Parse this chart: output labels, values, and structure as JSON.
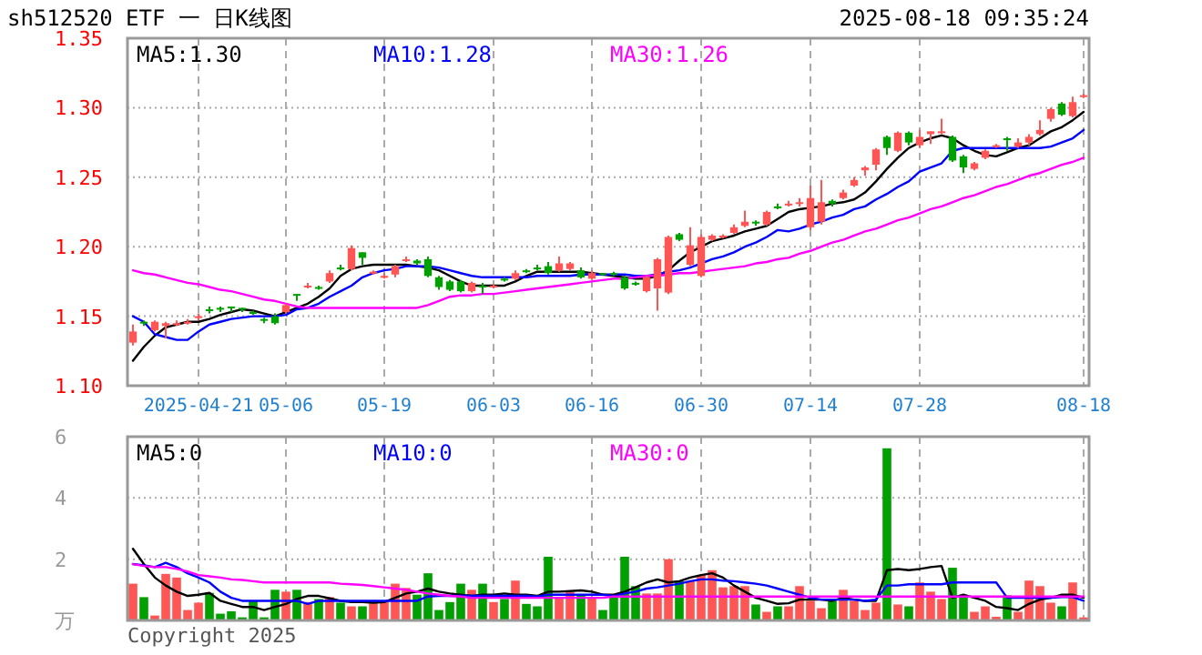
{
  "chart_data": [
    {
      "type": "candlestick",
      "title": "sh512520 ETF 一 日K线图",
      "subtitle": "2025-08-18 09:35:24",
      "categories": [
        null,
        null,
        null,
        null,
        null,
        null,
        "2025-04-21",
        null,
        null,
        null,
        null,
        null,
        null,
        null,
        "05-06",
        null,
        null,
        null,
        null,
        null,
        null,
        null,
        null,
        "05-19",
        null,
        null,
        null,
        null,
        null,
        null,
        null,
        null,
        null,
        "06-03",
        null,
        null,
        null,
        null,
        null,
        null,
        null,
        null,
        "06-16",
        null,
        null,
        null,
        null,
        null,
        null,
        null,
        null,
        null,
        "06-30",
        null,
        null,
        null,
        null,
        null,
        null,
        null,
        null,
        null,
        "07-14",
        null,
        null,
        null,
        null,
        null,
        null,
        null,
        null,
        null,
        "07-28",
        null,
        null,
        null,
        null,
        null,
        null,
        null,
        null,
        null,
        null,
        null,
        null,
        null,
        null,
        "08-18"
      ],
      "ohlc": [
        [
          1.131,
          1.144,
          1.129,
          1.139
        ],
        [
          1.146,
          1.147,
          1.143,
          1.145
        ],
        [
          1.14,
          1.147,
          1.139,
          1.146
        ],
        [
          1.143,
          1.146,
          1.134,
          1.145
        ],
        [
          1.144,
          1.147,
          1.143,
          1.145
        ],
        [
          1.145,
          1.148,
          1.144,
          1.146
        ],
        [
          1.149,
          1.152,
          1.147,
          1.15
        ],
        [
          1.155,
          1.157,
          1.152,
          1.154
        ],
        [
          1.156,
          1.157,
          1.153,
          1.155
        ],
        [
          1.157,
          1.157,
          1.153,
          1.156
        ],
        [
          1.156,
          1.156,
          1.153,
          1.155
        ],
        [
          1.153,
          1.154,
          1.151,
          1.152
        ],
        [
          1.148,
          1.149,
          1.145,
          1.147
        ],
        [
          1.15,
          1.152,
          1.144,
          1.145
        ],
        [
          1.153,
          1.159,
          1.152,
          1.158
        ],
        [
          1.166,
          1.166,
          1.161,
          1.165
        ],
        [
          1.171,
          1.174,
          1.17,
          1.172
        ],
        [
          1.171,
          1.172,
          1.169,
          1.17
        ],
        [
          1.175,
          1.183,
          1.174,
          1.181
        ],
        [
          1.185,
          1.187,
          1.183,
          1.184
        ],
        [
          1.184,
          1.201,
          1.183,
          1.199
        ],
        [
          1.196,
          1.196,
          1.187,
          1.192
        ],
        [
          1.181,
          1.183,
          1.18,
          1.182
        ],
        [
          1.178,
          1.181,
          1.177,
          1.179
        ],
        [
          1.18,
          1.187,
          1.178,
          1.186
        ],
        [
          1.19,
          1.193,
          1.189,
          1.191
        ],
        [
          1.19,
          1.191,
          1.187,
          1.188
        ],
        [
          1.191,
          1.193,
          1.178,
          1.179
        ],
        [
          1.178,
          1.179,
          1.169,
          1.171
        ],
        [
          1.175,
          1.176,
          1.168,
          1.169
        ],
        [
          1.175,
          1.176,
          1.167,
          1.168
        ],
        [
          1.168,
          1.175,
          1.167,
          1.174
        ],
        [
          1.172,
          1.174,
          1.166,
          1.171
        ],
        [
          1.171,
          1.173,
          1.17,
          1.172
        ],
        [
          1.177,
          1.178,
          1.175,
          1.176
        ],
        [
          1.177,
          1.183,
          1.176,
          1.181
        ],
        [
          1.183,
          1.184,
          1.181,
          1.182
        ],
        [
          1.185,
          1.187,
          1.183,
          1.184
        ],
        [
          1.186,
          1.189,
          1.18,
          1.181
        ],
        [
          1.183,
          1.193,
          1.182,
          1.188
        ],
        [
          1.184,
          1.189,
          1.183,
          1.188
        ],
        [
          1.183,
          1.185,
          1.177,
          1.178
        ],
        [
          1.177,
          1.183,
          1.176,
          1.181
        ],
        [
          1.181,
          1.181,
          1.179,
          1.18
        ],
        [
          1.181,
          1.182,
          1.179,
          1.18
        ],
        [
          1.178,
          1.179,
          1.169,
          1.17
        ],
        [
          1.174,
          1.175,
          1.172,
          1.173
        ],
        [
          1.168,
          1.179,
          1.167,
          1.178
        ],
        [
          1.17,
          1.192,
          1.154,
          1.191
        ],
        [
          1.167,
          1.208,
          1.166,
          1.207
        ],
        [
          1.209,
          1.21,
          1.204,
          1.205
        ],
        [
          1.187,
          1.214,
          1.186,
          1.201
        ],
        [
          1.179,
          1.209,
          1.178,
          1.207
        ],
        [
          1.205,
          1.209,
          1.204,
          1.208
        ],
        [
          1.207,
          1.209,
          1.206,
          1.208
        ],
        [
          1.21,
          1.216,
          1.209,
          1.214
        ],
        [
          1.215,
          1.226,
          1.214,
          1.218
        ],
        [
          1.218,
          1.219,
          1.215,
          1.217
        ],
        [
          1.216,
          1.226,
          1.215,
          1.225
        ],
        [
          1.229,
          1.231,
          1.227,
          1.228
        ],
        [
          1.23,
          1.233,
          1.229,
          1.231
        ],
        [
          1.231,
          1.235,
          1.229,
          1.232
        ],
        [
          1.214,
          1.244,
          1.212,
          1.235
        ],
        [
          1.218,
          1.248,
          1.216,
          1.232
        ],
        [
          1.233,
          1.234,
          1.229,
          1.231
        ],
        [
          1.235,
          1.241,
          1.234,
          1.239
        ],
        [
          1.244,
          1.25,
          1.243,
          1.248
        ],
        [
          1.255,
          1.258,
          1.251,
          1.257
        ],
        [
          1.259,
          1.271,
          1.255,
          1.27
        ],
        [
          1.279,
          1.28,
          1.266,
          1.271
        ],
        [
          1.269,
          1.283,
          1.268,
          1.282
        ],
        [
          1.282,
          1.283,
          1.273,
          1.275
        ],
        [
          1.273,
          1.284,
          1.271,
          1.279
        ],
        [
          1.281,
          1.283,
          1.274,
          1.283
        ],
        [
          1.282,
          1.292,
          1.281,
          1.283
        ],
        [
          1.279,
          1.28,
          1.261,
          1.262
        ],
        [
          1.265,
          1.266,
          1.253,
          1.257
        ],
        [
          1.256,
          1.261,
          1.255,
          1.26
        ],
        [
          1.264,
          1.27,
          1.263,
          1.269
        ],
        [
          1.272,
          1.274,
          1.271,
          1.273
        ],
        [
          1.278,
          1.279,
          1.269,
          1.277
        ],
        [
          1.272,
          1.278,
          1.271,
          1.275
        ],
        [
          1.275,
          1.281,
          1.273,
          1.279
        ],
        [
          1.281,
          1.291,
          1.28,
          1.284
        ],
        [
          1.292,
          1.3,
          1.29,
          1.299
        ],
        [
          1.303,
          1.304,
          1.294,
          1.295
        ],
        [
          1.294,
          1.308,
          1.293,
          1.304
        ],
        [
          1.308,
          1.31,
          1.307,
          1.309
        ]
      ],
      "colors": [
        "#ff5555",
        "#00a000",
        "#ff5555",
        "#ff5555",
        "#ff5555",
        "#ff5555",
        "#ff5555",
        "#00a000",
        "#00a000",
        "#00a000",
        "#00a000",
        "#00a000",
        "#00a000",
        "#00a000",
        "#ff5555",
        "#00a000",
        "#ff5555",
        "#00a000",
        "#ff5555",
        "#00a000",
        "#ff5555",
        "#00a000",
        "#ff5555",
        "#ff5555",
        "#ff5555",
        "#ff5555",
        "#00a000",
        "#00a000",
        "#00a000",
        "#00a000",
        "#00a000",
        "#ff5555",
        "#00a000",
        "#ff5555",
        "#00a000",
        "#ff5555",
        "#00a000",
        "#00a000",
        "#00a000",
        "#ff5555",
        "#ff5555",
        "#00a000",
        "#ff5555",
        "#00a000",
        "#00a000",
        "#00a000",
        "#00a000",
        "#ff5555",
        "#ff5555",
        "#ff5555",
        "#00a000",
        "#ff5555",
        "#ff5555",
        "#ff5555",
        "#ff5555",
        "#ff5555",
        "#ff5555",
        "#00a000",
        "#ff5555",
        "#00a000",
        "#ff5555",
        "#ff5555",
        "#ff5555",
        "#ff5555",
        "#00a000",
        "#ff5555",
        "#ff5555",
        "#ff5555",
        "#ff5555",
        "#00a000",
        "#ff5555",
        "#00a000",
        "#ff5555",
        "#ff5555",
        "#ff5555",
        "#00a000",
        "#00a000",
        "#ff5555",
        "#ff5555",
        "#ff5555",
        "#00a000",
        "#ff5555",
        "#ff5555",
        "#ff5555",
        "#ff5555",
        "#00a000",
        "#ff5555",
        "#ff5555"
      ],
      "series": [
        {
          "type": "line",
          "name": "MA5:1.30",
          "color": "#000000",
          "values": [
            1.118,
            1.128,
            1.136,
            1.142,
            1.144,
            1.146,
            1.146,
            1.148,
            1.151,
            1.153,
            1.155,
            1.154,
            1.152,
            1.15,
            1.153,
            1.156,
            1.159,
            1.164,
            1.17,
            1.179,
            1.184,
            1.186,
            1.187,
            1.187,
            1.187,
            1.187,
            1.186,
            1.185,
            1.183,
            1.179,
            1.175,
            1.172,
            1.172,
            1.172,
            1.172,
            1.175,
            1.179,
            1.182,
            1.182,
            1.182,
            1.182,
            1.182,
            1.181,
            1.18,
            1.179,
            1.178,
            1.177,
            1.177,
            1.179,
            1.183,
            1.19,
            1.196,
            1.2,
            1.204,
            1.206,
            1.208,
            1.211,
            1.213,
            1.215,
            1.22,
            1.225,
            1.227,
            1.228,
            1.229,
            1.231,
            1.232,
            1.234,
            1.239,
            1.247,
            1.256,
            1.264,
            1.271,
            1.275,
            1.278,
            1.28,
            1.278,
            1.273,
            1.269,
            1.266,
            1.265,
            1.268,
            1.271,
            1.273,
            1.278,
            1.283,
            1.286,
            1.291,
            1.297
          ]
        },
        {
          "type": "line",
          "name": "MA10:1.28",
          "color": "#0000ff",
          "values": [
            1.15,
            1.146,
            1.137,
            1.135,
            1.133,
            1.133,
            1.139,
            1.144,
            1.146,
            1.148,
            1.149,
            1.15,
            1.15,
            1.15,
            1.151,
            1.155,
            1.156,
            1.159,
            1.164,
            1.168,
            1.172,
            1.178,
            1.181,
            1.183,
            1.184,
            1.186,
            1.186,
            1.186,
            1.185,
            1.183,
            1.181,
            1.179,
            1.178,
            1.178,
            1.178,
            1.178,
            1.178,
            1.179,
            1.179,
            1.179,
            1.179,
            1.18,
            1.18,
            1.18,
            1.18,
            1.18,
            1.179,
            1.179,
            1.18,
            1.182,
            1.183,
            1.185,
            1.188,
            1.191,
            1.193,
            1.196,
            1.2,
            1.203,
            1.207,
            1.212,
            1.211,
            1.213,
            1.216,
            1.218,
            1.221,
            1.223,
            1.227,
            1.229,
            1.234,
            1.238,
            1.243,
            1.247,
            1.254,
            1.257,
            1.26,
            1.269,
            1.271,
            1.271,
            1.271,
            1.271,
            1.271,
            1.271,
            1.271,
            1.271,
            1.272,
            1.275,
            1.278,
            1.284
          ]
        },
        {
          "type": "line",
          "name": "MA30:1.26",
          "color": "#ff00ff",
          "values": [
            1.183,
            1.181,
            1.18,
            1.178,
            1.176,
            1.174,
            1.173,
            1.171,
            1.169,
            1.168,
            1.166,
            1.164,
            1.162,
            1.161,
            1.159,
            1.157,
            1.156,
            1.156,
            1.156,
            1.156,
            1.156,
            1.156,
            1.156,
            1.156,
            1.156,
            1.156,
            1.156,
            1.158,
            1.161,
            1.164,
            1.165,
            1.165,
            1.166,
            1.166,
            1.167,
            1.168,
            1.169,
            1.17,
            1.171,
            1.172,
            1.173,
            1.174,
            1.175,
            1.176,
            1.177,
            1.177,
            1.178,
            1.179,
            1.179,
            1.18,
            1.181,
            1.181,
            1.182,
            1.183,
            1.184,
            1.185,
            1.186,
            1.188,
            1.189,
            1.191,
            1.192,
            1.195,
            1.197,
            1.2,
            1.203,
            1.205,
            1.208,
            1.211,
            1.213,
            1.216,
            1.219,
            1.221,
            1.224,
            1.227,
            1.229,
            1.232,
            1.235,
            1.237,
            1.24,
            1.243,
            1.245,
            1.248,
            1.251,
            1.253,
            1.256,
            1.259,
            1.261,
            1.264
          ]
        }
      ],
      "ylim": [
        1.1,
        1.35
      ],
      "yticks": [
        {
          "value": 1.1,
          "label": "1.10"
        },
        {
          "value": 1.15,
          "label": "1.15"
        },
        {
          "value": 1.2,
          "label": "1.20"
        },
        {
          "value": 1.25,
          "label": "1.25"
        },
        {
          "value": 1.3,
          "label": "1.30"
        },
        {
          "value": 1.35,
          "label": "1.35"
        }
      ],
      "grid": true,
      "legend": "top"
    },
    {
      "type": "bar",
      "categories": [
        null,
        null,
        null,
        null,
        null,
        null,
        null,
        null,
        null,
        null,
        null,
        null,
        null,
        null,
        null,
        null,
        null,
        null,
        null,
        null,
        null,
        null,
        null,
        null,
        null,
        null,
        null,
        null,
        null,
        null,
        null,
        null,
        null,
        null,
        null,
        null,
        null,
        null,
        null,
        null,
        null,
        null,
        null,
        null,
        null,
        null,
        null,
        null,
        null,
        null,
        null,
        null,
        null,
        null,
        null,
        null,
        null,
        null,
        null,
        null,
        null,
        null,
        null,
        null,
        null,
        null,
        null,
        null,
        null,
        null,
        null,
        null,
        null,
        null,
        null,
        null,
        null,
        null,
        null,
        null,
        null,
        null,
        null,
        null,
        null,
        null,
        null,
        null
      ],
      "tick_labels": "y",
      "series": [
        {
          "type": "bar",
          "values": [
            1.2,
            0.76,
            0.16,
            1.52,
            1.4,
            0.34,
            0.58,
            0.9,
            0.22,
            0.3,
            0.1,
            0.64,
            0.1,
            1.0,
            0.94,
            1.0,
            0.6,
            0.7,
            0.76,
            0.58,
            0.46,
            0.46,
            0.56,
            0.6,
            1.2,
            1.06,
            0.84,
            1.54,
            0.34,
            0.6,
            1.2,
            1.0,
            1.2,
            0.6,
            0.7,
            1.3,
            0.54,
            0.46,
            2.08,
            0.72,
            0.92,
            0.8,
            0.72,
            0.34,
            0.84,
            2.08,
            1.12,
            0.88,
            0.88,
            2.0,
            1.28,
            1.28,
            1.48,
            1.64,
            1.08,
            1.12,
            1.12,
            0.52,
            0.28,
            0.46,
            0.46,
            1.12,
            0.64,
            0.4,
            0.64,
            1.0,
            0.64,
            0.34,
            0.58,
            5.62,
            0.52,
            0.46,
            1.24,
            0.94,
            0.7,
            1.72,
            0.76,
            0.28,
            0.46,
            0.12,
            0.82,
            0.28,
            1.3,
            1.12,
            0.58,
            0.46,
            1.24,
            0.1
          ],
          "colors": [
            "#ff5555",
            "#00a000",
            "#ff5555",
            "#ff5555",
            "#ff5555",
            "#ff5555",
            "#ff5555",
            "#00a000",
            "#00a000",
            "#00a000",
            "#00a000",
            "#00a000",
            "#00a000",
            "#00a000",
            "#ff5555",
            "#00a000",
            "#ff5555",
            "#00a000",
            "#ff5555",
            "#00a000",
            "#ff5555",
            "#00a000",
            "#ff5555",
            "#ff5555",
            "#ff5555",
            "#ff5555",
            "#00a000",
            "#00a000",
            "#00a000",
            "#00a000",
            "#00a000",
            "#ff5555",
            "#00a000",
            "#ff5555",
            "#00a000",
            "#ff5555",
            "#00a000",
            "#00a000",
            "#00a000",
            "#ff5555",
            "#ff5555",
            "#00a000",
            "#ff5555",
            "#00a000",
            "#00a000",
            "#00a000",
            "#00a000",
            "#ff5555",
            "#ff5555",
            "#ff5555",
            "#00a000",
            "#ff5555",
            "#ff5555",
            "#ff5555",
            "#ff5555",
            "#ff5555",
            "#ff5555",
            "#00a000",
            "#ff5555",
            "#00a000",
            "#ff5555",
            "#ff5555",
            "#ff5555",
            "#ff5555",
            "#00a000",
            "#ff5555",
            "#ff5555",
            "#ff5555",
            "#ff5555",
            "#00a000",
            "#ff5555",
            "#00a000",
            "#ff5555",
            "#ff5555",
            "#ff5555",
            "#00a000",
            "#00a000",
            "#ff5555",
            "#ff5555",
            "#ff5555",
            "#00a000",
            "#ff5555",
            "#ff5555",
            "#ff5555",
            "#ff5555",
            "#00a000",
            "#ff5555",
            "#ff5555"
          ]
        },
        {
          "type": "line",
          "name": "MA5:0",
          "color": "#000000",
          "values": [
            2.34,
            1.84,
            1.4,
            1.14,
            0.94,
            0.8,
            0.84,
            0.9,
            0.64,
            0.54,
            0.44,
            0.44,
            0.34,
            0.44,
            0.54,
            0.7,
            0.8,
            0.8,
            0.72,
            0.64,
            0.6,
            0.6,
            0.58,
            0.6,
            0.74,
            0.88,
            0.94,
            1.04,
            0.94,
            0.88,
            0.84,
            0.8,
            0.84,
            0.84,
            0.88,
            0.84,
            0.84,
            0.8,
            0.94,
            0.94,
            0.96,
            0.98,
            0.94,
            0.84,
            0.84,
            0.94,
            1.08,
            1.24,
            1.34,
            1.24,
            1.28,
            1.4,
            1.48,
            1.54,
            1.4,
            1.14,
            0.94,
            0.74,
            0.64,
            0.54,
            0.56,
            0.68,
            0.68,
            0.68,
            0.64,
            0.74,
            0.68,
            0.64,
            0.64,
            1.64,
            1.68,
            1.64,
            1.68,
            1.74,
            1.78,
            0.74,
            0.84,
            0.74,
            0.64,
            0.44,
            0.4,
            0.34,
            0.54,
            0.68,
            0.74,
            0.84,
            0.84,
            0.74
          ]
        },
        {
          "type": "line",
          "name": "MA10:0",
          "color": "#0000ff",
          "values": [
            1.84,
            1.8,
            1.74,
            1.88,
            1.74,
            1.54,
            1.4,
            1.24,
            0.94,
            0.74,
            0.64,
            0.64,
            0.64,
            0.64,
            0.64,
            0.64,
            0.54,
            0.64,
            0.64,
            0.64,
            0.64,
            0.64,
            0.64,
            0.64,
            0.64,
            0.64,
            0.64,
            0.78,
            0.8,
            0.8,
            0.8,
            0.8,
            0.8,
            0.8,
            0.8,
            0.8,
            0.8,
            0.78,
            0.84,
            0.84,
            0.84,
            0.84,
            0.84,
            0.84,
            0.8,
            0.88,
            0.94,
            1.04,
            1.08,
            1.14,
            1.2,
            1.28,
            1.34,
            1.34,
            1.3,
            1.28,
            1.24,
            1.2,
            1.14,
            1.04,
            0.94,
            0.84,
            0.74,
            0.68,
            0.68,
            0.68,
            0.68,
            0.64,
            0.68,
            1.14,
            1.14,
            1.18,
            1.18,
            1.18,
            1.18,
            1.24,
            1.24,
            1.24,
            1.24,
            1.24,
            0.74,
            0.74,
            0.74,
            0.74,
            0.74,
            0.76,
            0.76,
            0.64
          ]
        },
        {
          "type": "line",
          "name": "MA30:0",
          "color": "#ff00ff",
          "values": [
            1.84,
            1.78,
            1.74,
            1.74,
            1.68,
            1.6,
            1.48,
            1.44,
            1.4,
            1.34,
            1.32,
            1.28,
            1.24,
            1.24,
            1.24,
            1.24,
            1.24,
            1.24,
            1.24,
            1.2,
            1.18,
            1.16,
            1.12,
            1.08,
            1.04,
            1.0,
            0.94,
            0.88,
            0.84,
            0.8,
            0.78,
            0.74,
            0.74,
            0.74,
            0.74,
            0.74,
            0.74,
            0.74,
            0.74,
            0.74,
            0.74,
            0.74,
            0.74,
            0.74,
            0.78,
            0.78,
            0.78,
            0.78,
            0.78,
            0.78,
            0.78,
            0.78,
            0.78,
            0.78,
            0.78,
            0.78,
            0.78,
            0.78,
            0.78,
            0.78,
            0.78,
            0.78,
            0.78,
            0.78,
            0.78,
            0.78,
            0.78,
            0.78,
            0.78,
            0.78,
            0.78,
            0.78,
            0.78,
            0.78,
            0.78,
            0.78,
            0.78,
            0.78,
            0.78,
            0.78,
            0.78,
            0.78,
            0.78,
            0.78,
            0.78,
            0.78,
            0.78,
            0.78
          ]
        }
      ],
      "ylim": [
        0,
        6
      ],
      "yticks": [
        {
          "value": 0,
          "label": "万"
        },
        2,
        4,
        6
      ],
      "grid": true,
      "legend": "top",
      "annotations": [
        "Copyright 2025"
      ]
    }
  ]
}
